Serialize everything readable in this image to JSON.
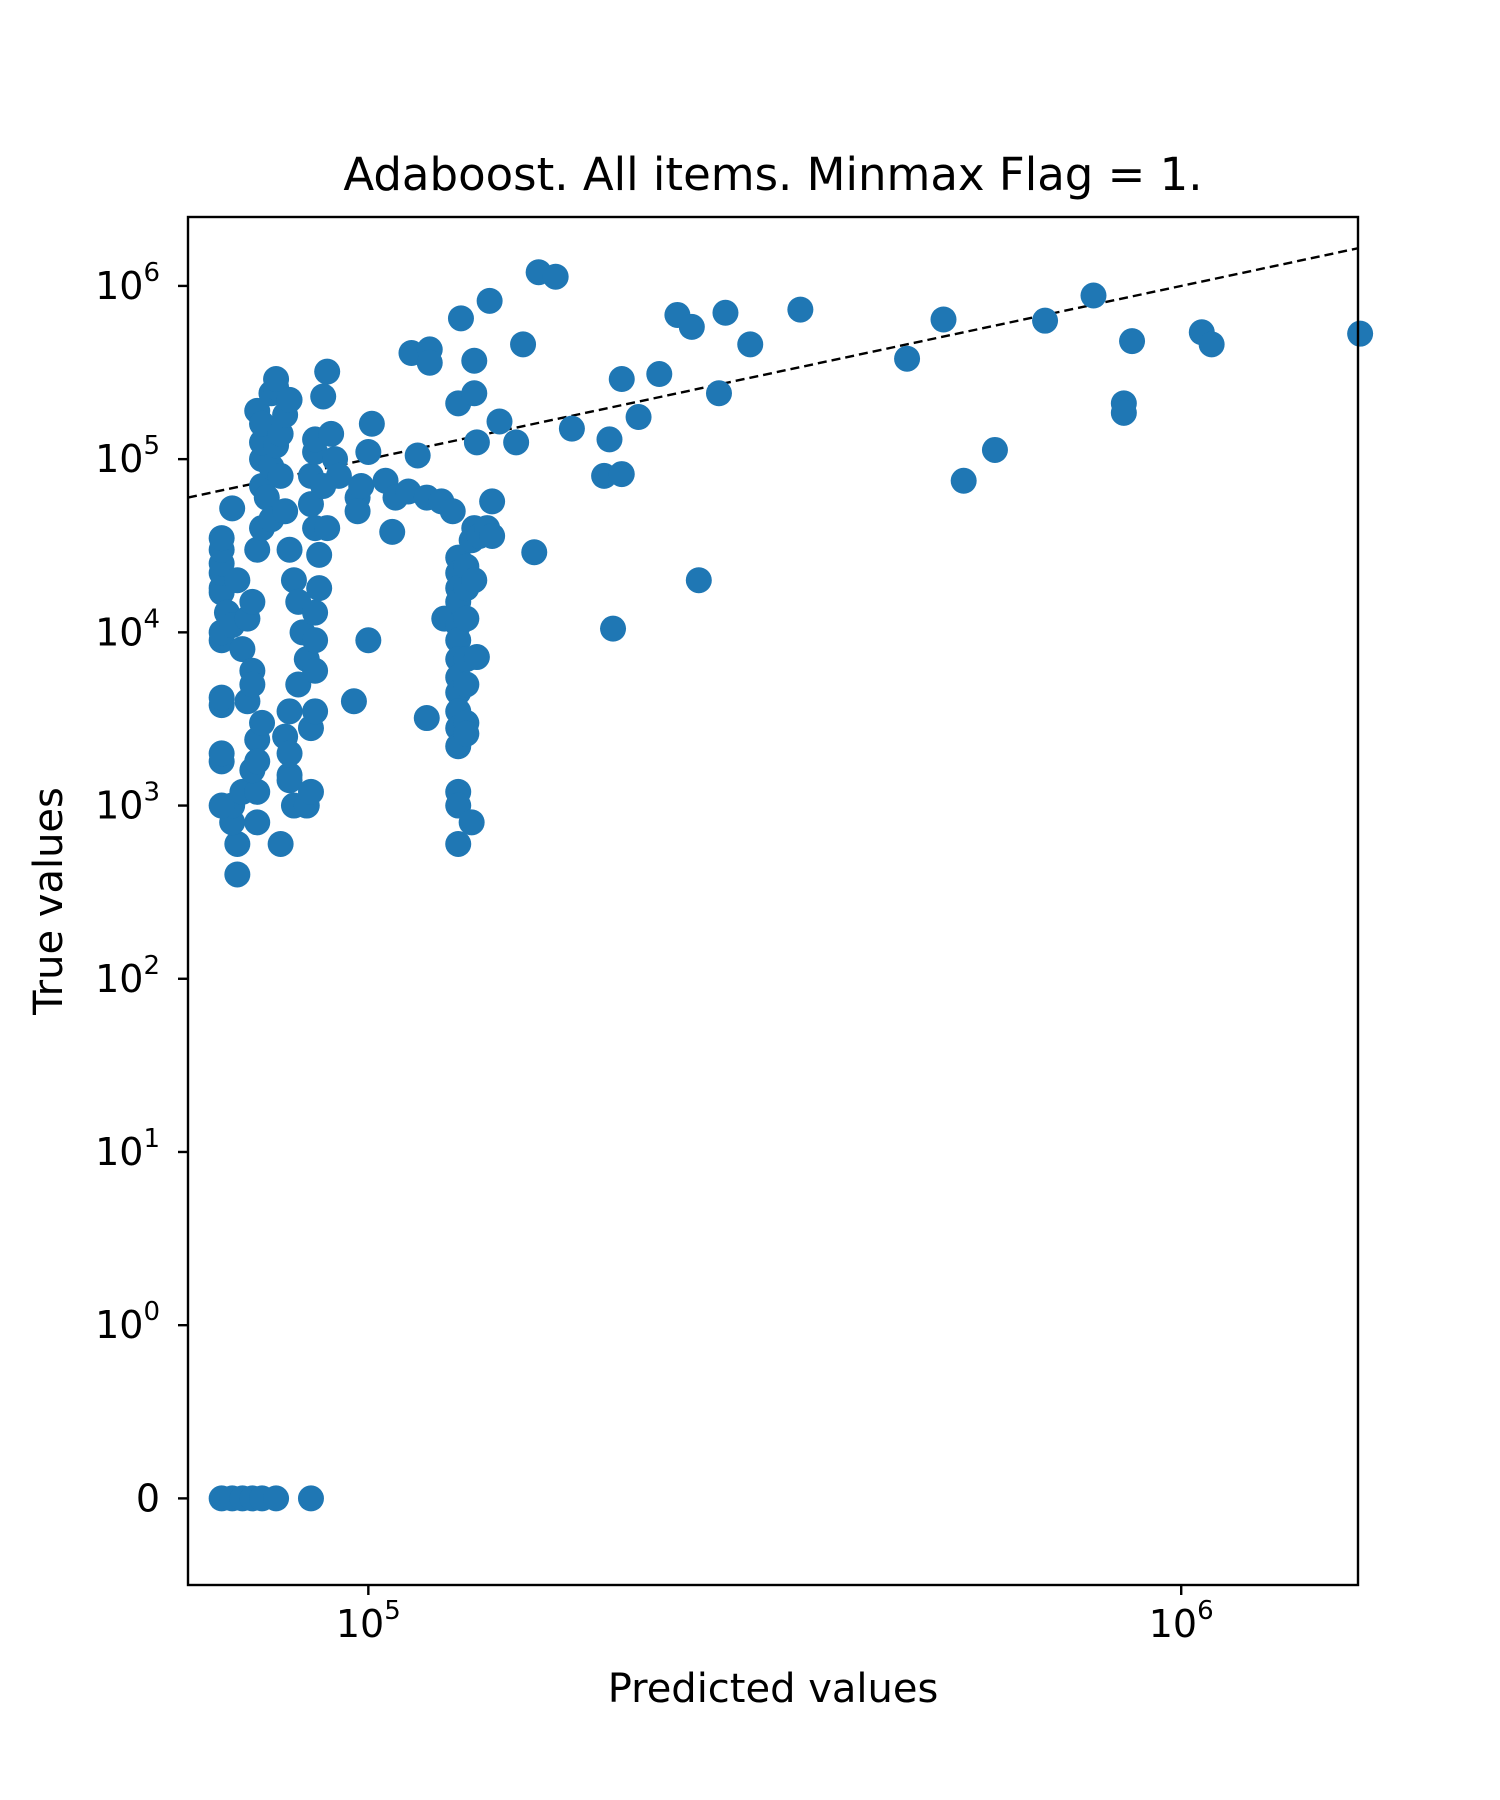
{
  "chart_data": {
    "type": "scatter",
    "title": "Adaboost. All items. Minmax Flag = 1.",
    "xlabel": "Predicted values",
    "ylabel": "True values",
    "x_scale": "log",
    "y_scale": "symlog",
    "xlim": [
      60000,
      1650000
    ],
    "ylim": [
      -0.5,
      2500000
    ],
    "x_ticks": [
      {
        "value": 100000,
        "base": "10",
        "exp": "5"
      },
      {
        "value": 1000000,
        "base": "10",
        "exp": "6"
      }
    ],
    "y_ticks": [
      {
        "value": 0,
        "base": "0",
        "exp": ""
      },
      {
        "value": 1,
        "base": "10",
        "exp": "0"
      },
      {
        "value": 10,
        "base": "10",
        "exp": "1"
      },
      {
        "value": 100,
        "base": "10",
        "exp": "2"
      },
      {
        "value": 1000,
        "base": "10",
        "exp": "3"
      },
      {
        "value": 10000,
        "base": "10",
        "exp": "4"
      },
      {
        "value": 100000,
        "base": "10",
        "exp": "5"
      },
      {
        "value": 1000000,
        "base": "10",
        "exp": "6"
      }
    ],
    "grid": false,
    "legend": "none",
    "marker_color": "#1f77b4",
    "reference_line": {
      "style": "dashed",
      "color": "#000000",
      "from": [
        60000,
        60000
      ],
      "to": [
        1650000,
        1650000
      ]
    },
    "series": [
      {
        "points": [
          [
            66000,
            0
          ],
          [
            68000,
            0
          ],
          [
            70000,
            0
          ],
          [
            72000,
            0
          ],
          [
            74000,
            0
          ],
          [
            77000,
            0
          ],
          [
            85000,
            0
          ],
          [
            69000,
            400
          ],
          [
            69000,
            600
          ],
          [
            68000,
            800
          ],
          [
            73000,
            800
          ],
          [
            78000,
            600
          ],
          [
            68000,
            1000
          ],
          [
            70000,
            1200
          ],
          [
            73000,
            1200
          ],
          [
            66000,
            1000
          ],
          [
            66000,
            1800
          ],
          [
            66000,
            2000
          ],
          [
            66000,
            3800
          ],
          [
            66000,
            4200
          ],
          [
            66000,
            9000
          ],
          [
            66000,
            10000
          ],
          [
            66000,
            17000
          ],
          [
            66000,
            18000
          ],
          [
            66000,
            22000
          ],
          [
            66000,
            25000
          ],
          [
            66000,
            30000
          ],
          [
            66000,
            35000
          ],
          [
            68000,
            52000
          ],
          [
            67000,
            13000
          ],
          [
            68000,
            11000
          ],
          [
            69000,
            20000
          ],
          [
            70000,
            8000
          ],
          [
            71000,
            12000
          ],
          [
            72000,
            6000
          ],
          [
            72000,
            15000
          ],
          [
            73000,
            30000
          ],
          [
            71000,
            4000
          ],
          [
            72000,
            1600
          ],
          [
            73000,
            2400
          ],
          [
            73000,
            1800
          ],
          [
            74000,
            3000
          ],
          [
            72000,
            5000
          ],
          [
            74000,
            40000
          ],
          [
            74000,
            70000
          ],
          [
            74000,
            100000
          ],
          [
            74000,
            125000
          ],
          [
            73000,
            190000
          ],
          [
            76000,
            240000
          ],
          [
            77000,
            260000
          ],
          [
            77000,
            290000
          ],
          [
            74000,
            160000
          ],
          [
            76000,
            90000
          ],
          [
            75000,
            60000
          ],
          [
            76000,
            45000
          ],
          [
            77000,
            120000
          ],
          [
            78000,
            140000
          ],
          [
            79000,
            180000
          ],
          [
            80000,
            220000
          ],
          [
            78000,
            80000
          ],
          [
            79000,
            50000
          ],
          [
            80000,
            30000
          ],
          [
            81000,
            20000
          ],
          [
            82000,
            15000
          ],
          [
            83000,
            10000
          ],
          [
            84000,
            7000
          ],
          [
            82000,
            5000
          ],
          [
            80000,
            3500
          ],
          [
            79000,
            2500
          ],
          [
            80000,
            2000
          ],
          [
            80000,
            1500
          ],
          [
            80000,
            1400
          ],
          [
            81000,
            1000
          ],
          [
            84000,
            1000
          ],
          [
            85000,
            1200
          ],
          [
            85000,
            2800
          ],
          [
            86000,
            3500
          ],
          [
            86000,
            6000
          ],
          [
            86000,
            9000
          ],
          [
            86000,
            13000
          ],
          [
            87000,
            18000
          ],
          [
            87000,
            28000
          ],
          [
            86000,
            40000
          ],
          [
            85000,
            55000
          ],
          [
            85000,
            80000
          ],
          [
            86000,
            110000
          ],
          [
            86000,
            130000
          ],
          [
            88000,
            230000
          ],
          [
            89000,
            320000
          ],
          [
            90000,
            140000
          ],
          [
            91000,
            100000
          ],
          [
            92000,
            80000
          ],
          [
            88000,
            70000
          ],
          [
            89000,
            40000
          ],
          [
            97000,
            60000
          ],
          [
            97000,
            50000
          ],
          [
            98000,
            70000
          ],
          [
            100000,
            9000
          ],
          [
            96000,
            4000
          ],
          [
            100000,
            110000
          ],
          [
            101000,
            160000
          ],
          [
            105000,
            75000
          ],
          [
            107000,
            38000
          ],
          [
            108000,
            60000
          ],
          [
            112000,
            65000
          ],
          [
            115000,
            105000
          ],
          [
            113000,
            410000
          ],
          [
            119000,
            430000
          ],
          [
            119000,
            360000
          ],
          [
            118000,
            60000
          ],
          [
            123000,
            57000
          ],
          [
            127000,
            50000
          ],
          [
            118000,
            3200
          ],
          [
            124000,
            12000
          ],
          [
            127000,
            12000
          ],
          [
            129000,
            27000
          ],
          [
            129000,
            22000
          ],
          [
            129000,
            18000
          ],
          [
            129000,
            15000
          ],
          [
            129000,
            11000
          ],
          [
            129000,
            9000
          ],
          [
            129000,
            7000
          ],
          [
            129000,
            5500
          ],
          [
            129000,
            4500
          ],
          [
            129000,
            3500
          ],
          [
            129000,
            2800
          ],
          [
            129000,
            2200
          ],
          [
            129000,
            1200
          ],
          [
            129000,
            1000
          ],
          [
            129000,
            600
          ],
          [
            132000,
            3000
          ],
          [
            132000,
            5000
          ],
          [
            132000,
            7000
          ],
          [
            132000,
            12000
          ],
          [
            132000,
            18000
          ],
          [
            132000,
            24000
          ],
          [
            132000,
            2600
          ],
          [
            134000,
            800
          ],
          [
            135000,
            20000
          ],
          [
            136000,
            7200
          ],
          [
            134000,
            34000
          ],
          [
            135000,
            40000
          ],
          [
            137000,
            36000
          ],
          [
            129000,
            210000
          ],
          [
            130000,
            650000
          ],
          [
            135000,
            370000
          ],
          [
            135000,
            240000
          ],
          [
            136000,
            125000
          ],
          [
            140000,
            40000
          ],
          [
            142000,
            36000
          ],
          [
            142000,
            57000
          ],
          [
            141000,
            820000
          ],
          [
            145000,
            165000
          ],
          [
            152000,
            125000
          ],
          [
            155000,
            460000
          ],
          [
            162000,
            1200000
          ],
          [
            170000,
            1130000
          ],
          [
            160000,
            29000
          ],
          [
            178000,
            150000
          ],
          [
            195000,
            80000
          ],
          [
            198000,
            130000
          ],
          [
            200000,
            10500
          ],
          [
            205000,
            290000
          ],
          [
            205000,
            82000
          ],
          [
            215000,
            175000
          ],
          [
            228000,
            310000
          ],
          [
            240000,
            680000
          ],
          [
            250000,
            580000
          ],
          [
            255000,
            20000
          ],
          [
            270000,
            240000
          ],
          [
            275000,
            700000
          ],
          [
            295000,
            460000
          ],
          [
            340000,
            730000
          ],
          [
            460000,
            380000
          ],
          [
            510000,
            640000
          ],
          [
            540000,
            75000
          ],
          [
            590000,
            113000
          ],
          [
            680000,
            630000
          ],
          [
            780000,
            880000
          ],
          [
            850000,
            210000
          ],
          [
            850000,
            185000
          ],
          [
            870000,
            480000
          ],
          [
            1060000,
            540000
          ],
          [
            1090000,
            460000
          ],
          [
            1660000,
            530000
          ]
        ]
      }
    ]
  }
}
